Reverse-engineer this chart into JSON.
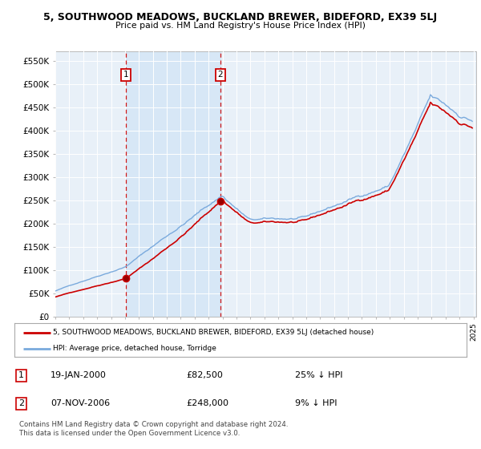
{
  "title": "5, SOUTHWOOD MEADOWS, BUCKLAND BREWER, BIDEFORD, EX39 5LJ",
  "subtitle": "Price paid vs. HM Land Registry's House Price Index (HPI)",
  "legend_entry1": "5, SOUTHWOOD MEADOWS, BUCKLAND BREWER, BIDEFORD, EX39 5LJ (detached house)",
  "legend_entry2": "HPI: Average price, detached house, Torridge",
  "annotation1_label": "1",
  "annotation1_date": "19-JAN-2000",
  "annotation1_price": "£82,500",
  "annotation1_hpi": "25% ↓ HPI",
  "annotation2_label": "2",
  "annotation2_date": "07-NOV-2006",
  "annotation2_price": "£248,000",
  "annotation2_hpi": "9% ↓ HPI",
  "footer": "Contains HM Land Registry data © Crown copyright and database right 2024.\nThis data is licensed under the Open Government Licence v3.0.",
  "red_color": "#cc0000",
  "blue_color": "#7aaadd",
  "fill_color": "#ddeeff",
  "dashed_red": "#cc0000",
  "background_chart": "#e8f0f8",
  "ylim": [
    0,
    570000
  ],
  "yticks": [
    0,
    50000,
    100000,
    150000,
    200000,
    250000,
    300000,
    350000,
    400000,
    450000,
    500000,
    550000
  ],
  "ytick_labels": [
    "£0",
    "£50K",
    "£100K",
    "£150K",
    "£200K",
    "£250K",
    "£300K",
    "£350K",
    "£400K",
    "£450K",
    "£500K",
    "£550K"
  ],
  "xmin": 1995.0,
  "xmax": 2025.2,
  "sale1_x": 2000.05,
  "sale1_y": 82500,
  "sale2_x": 2006.85,
  "sale2_y": 248000,
  "hpi_scale": 1.0,
  "sale1_hpi_ratio": 0.75,
  "sale2_hpi_ratio": 0.91
}
